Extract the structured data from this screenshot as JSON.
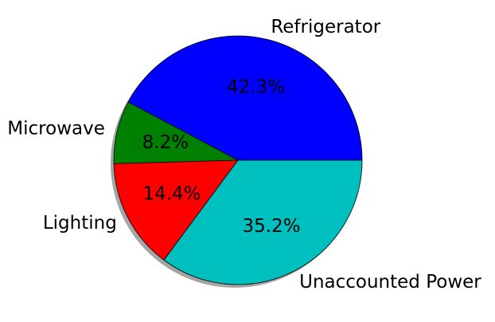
{
  "chart_data": {
    "type": "pie",
    "title": "",
    "shadow": true,
    "start_angle_deg": 0,
    "direction": "counterclockwise",
    "slices": [
      {
        "label": "Refrigerator",
        "value": 42.3,
        "pct_text": "42.3%",
        "color": "#0000ff"
      },
      {
        "label": "Microwave",
        "value": 8.2,
        "pct_text": "8.2%",
        "color": "#008000"
      },
      {
        "label": "Lighting",
        "value": 14.4,
        "pct_text": "14.4%",
        "color": "#ff0000"
      },
      {
        "label": "Unaccounted Power",
        "value": 35.2,
        "pct_text": "35.2%",
        "color": "#00bfbf"
      }
    ]
  }
}
